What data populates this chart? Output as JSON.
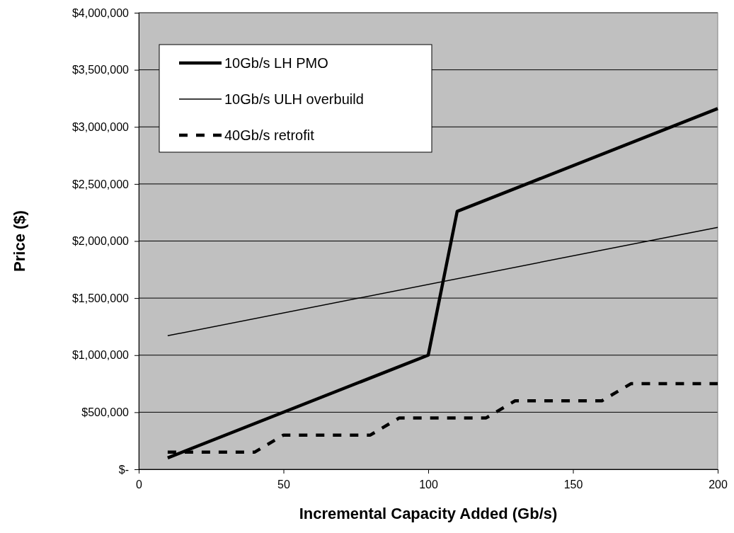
{
  "chart_data": {
    "type": "line",
    "xlabel": "Incremental Capacity Added (Gb/s)",
    "ylabel": "Price ($)",
    "xlim": [
      0,
      200
    ],
    "xticks": [
      0,
      50,
      100,
      150,
      200
    ],
    "ylim": [
      0,
      4000000
    ],
    "yticks": [
      {
        "value": 0,
        "label": "$-"
      },
      {
        "value": 500000,
        "label": "$500,000"
      },
      {
        "value": 1000000,
        "label": "$1,000,000"
      },
      {
        "value": 1500000,
        "label": "$1,500,000"
      },
      {
        "value": 2000000,
        "label": "$2,000,000"
      },
      {
        "value": 2500000,
        "label": "$2,500,000"
      },
      {
        "value": 3000000,
        "label": "$3,000,000"
      },
      {
        "value": 3500000,
        "label": "$3,500,000"
      },
      {
        "value": 4000000,
        "label": "$4,000,000"
      }
    ],
    "grid": "y",
    "legend": "top left",
    "marker": "none",
    "series": [
      {
        "name": "10Gb/s LH PMO",
        "color": "#000000",
        "line_style": "solid",
        "x": [
          10,
          100,
          110,
          200
        ],
        "values": [
          100000,
          1000000,
          2260000,
          3160000
        ]
      },
      {
        "name": "10Gb/s ULH overbuild",
        "color": "#000000",
        "line_style": "solid",
        "x": [
          10,
          200
        ],
        "values": [
          1170000,
          2120000
        ]
      },
      {
        "name": "40Gb/s retrofit",
        "color": "#000000",
        "line_style": "dashed",
        "x": [
          10,
          20,
          30,
          40,
          50,
          60,
          70,
          80,
          90,
          100,
          110,
          120,
          130,
          140,
          150,
          160,
          170,
          180,
          190,
          200
        ],
        "values": [
          150000,
          150000,
          150000,
          150000,
          300000,
          300000,
          300000,
          300000,
          450000,
          450000,
          450000,
          450000,
          600000,
          600000,
          600000,
          600000,
          750000,
          750000,
          750000,
          750000
        ]
      }
    ]
  }
}
